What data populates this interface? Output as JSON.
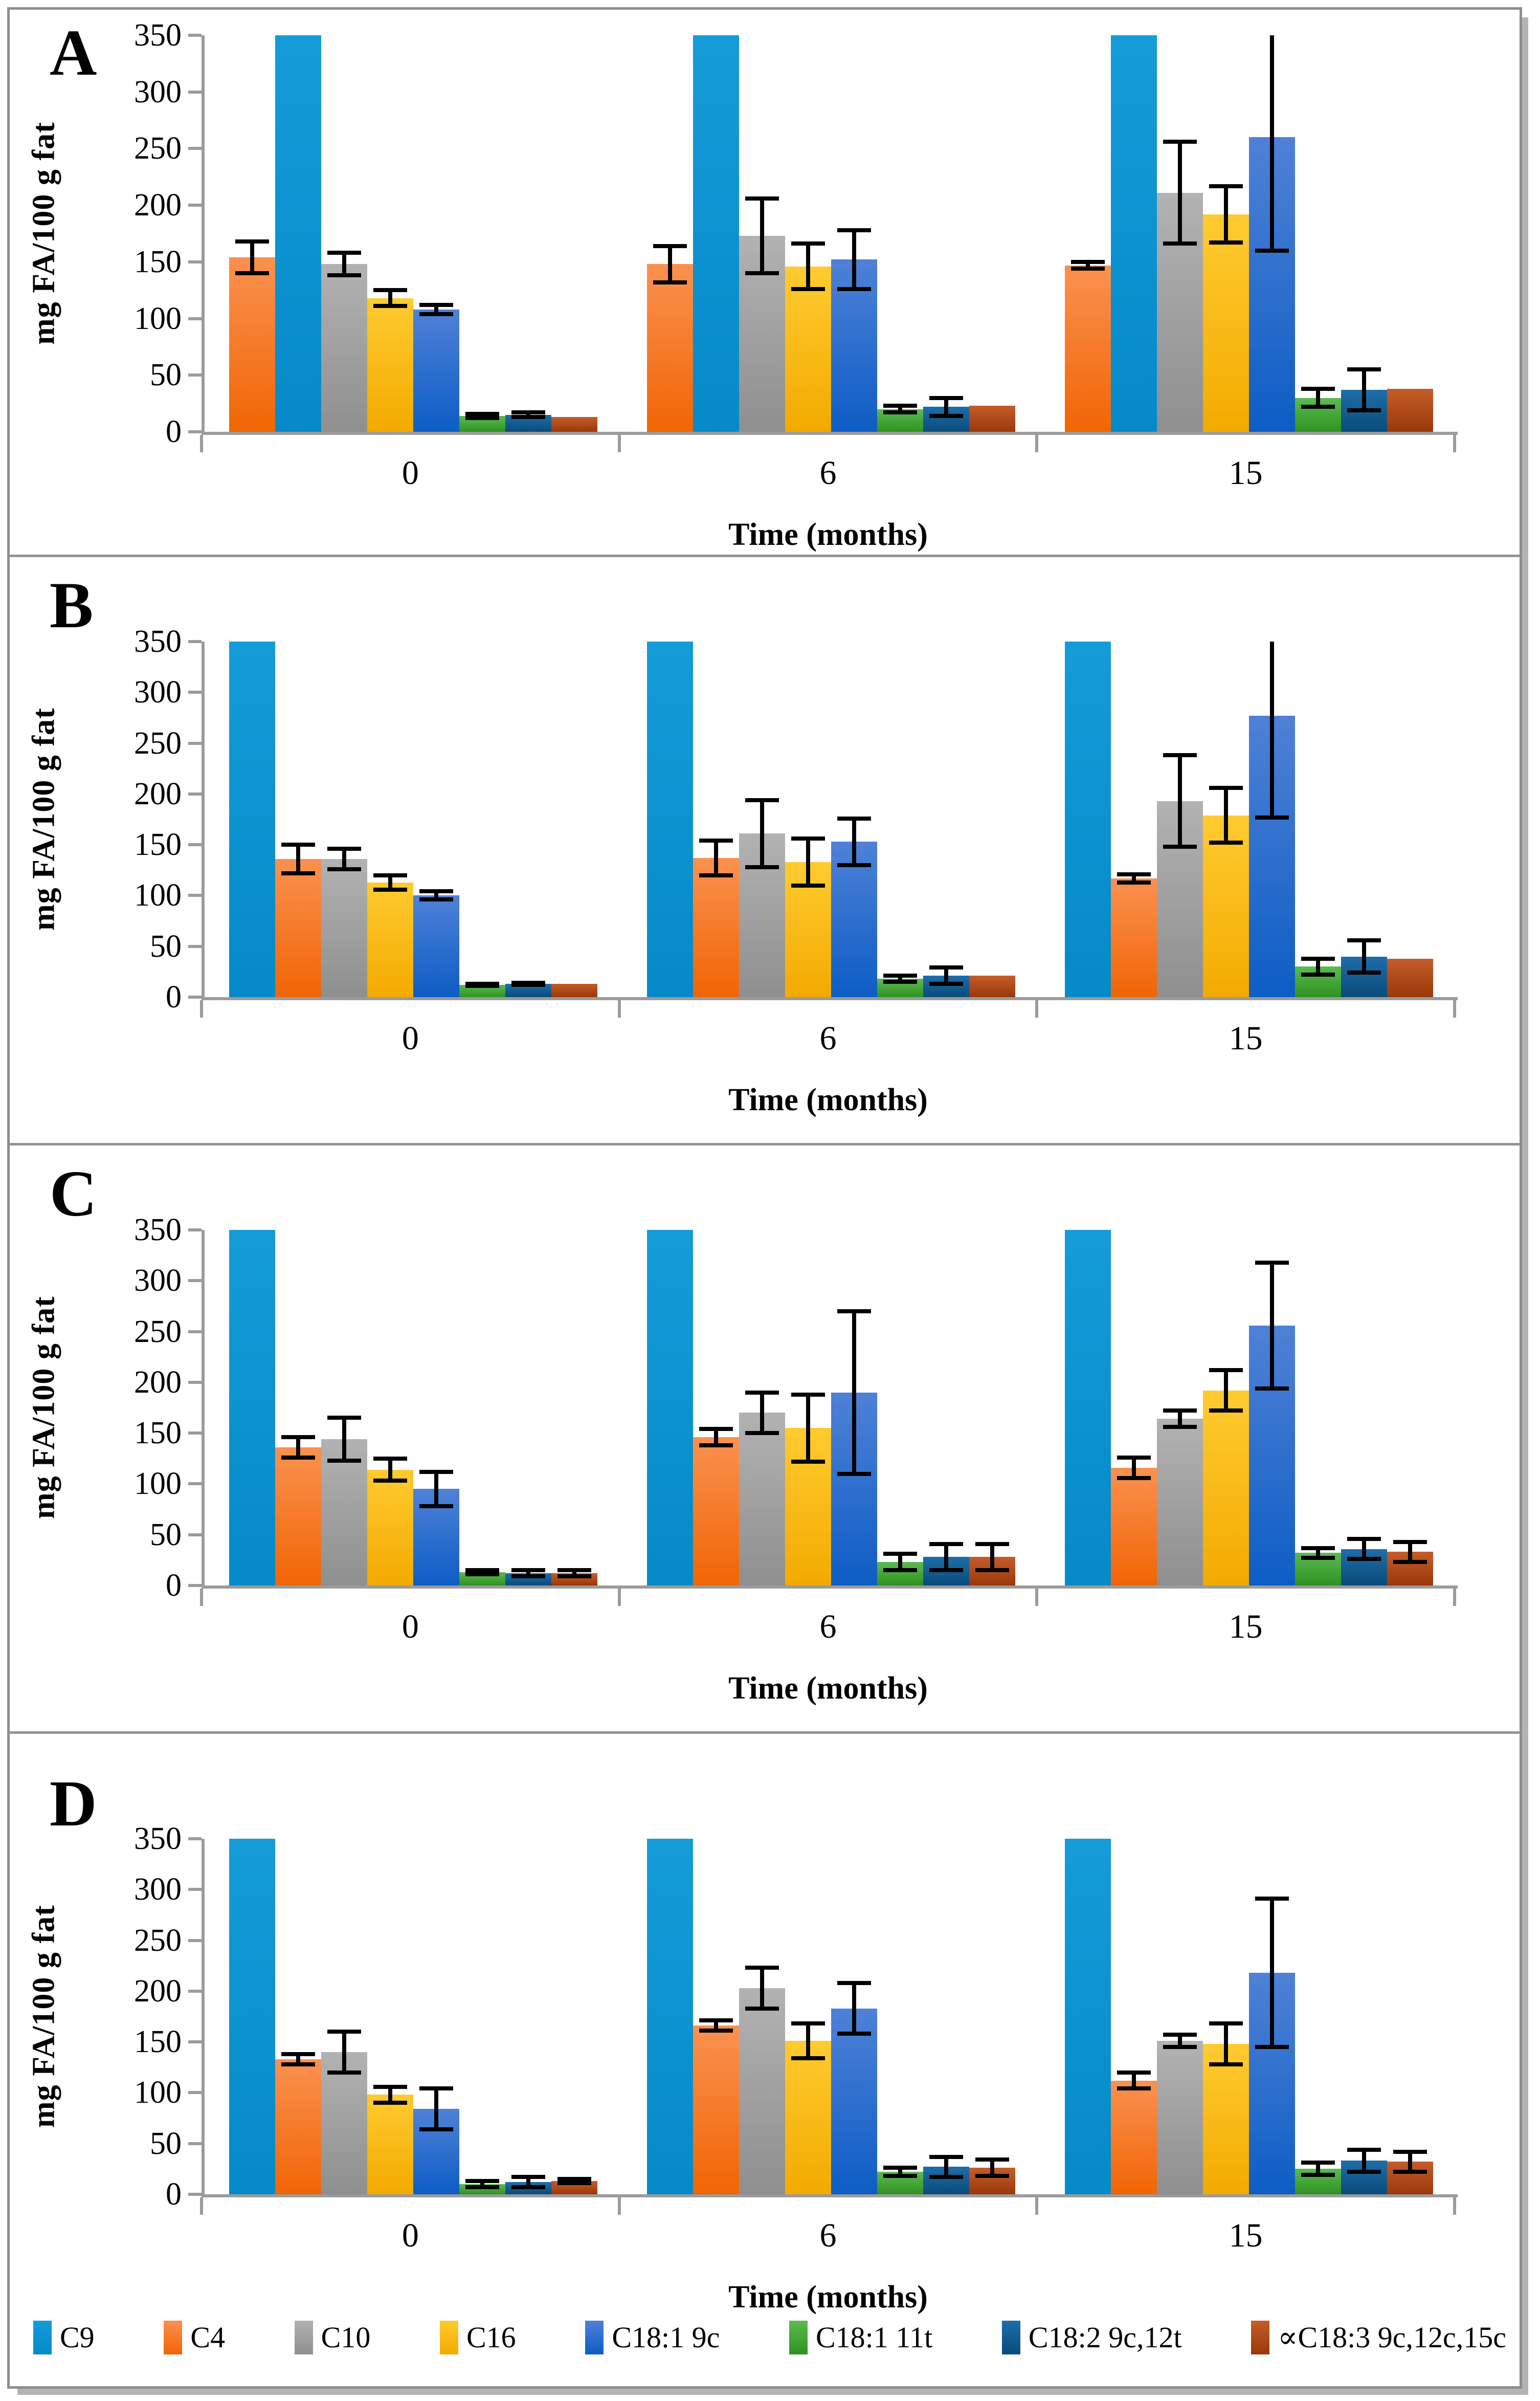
{
  "figure": {
    "y_axis_title": "mg FA/100 g fat",
    "x_axis_title": "Time (months)",
    "y_ticks": [
      "0",
      "50",
      "100",
      "150",
      "200",
      "250",
      "300",
      "350"
    ],
    "y_max": 350,
    "x_categories": [
      "0",
      "6",
      "15"
    ],
    "panel_letters": [
      "A",
      "B",
      "C",
      "D"
    ]
  },
  "legend": [
    {
      "label": "C9",
      "color": "#0E95D3"
    },
    {
      "label": "C4",
      "color": "#F2700A"
    },
    {
      "label": "C10",
      "color": "#A5A5A5"
    },
    {
      "label": "C16",
      "color": "#FFC000"
    },
    {
      "label": "C18:1 9c",
      "color": "#2E6EC8"
    },
    {
      "label": "C18:1 11t",
      "color": "#44A437"
    },
    {
      "label": "C18:2 9c,12t",
      "color": "#135C8C"
    },
    {
      "label": "∝C18:3 9c,12c,15c",
      "color": "#B2491A"
    }
  ],
  "chart_data": [
    {
      "panel": "A",
      "type": "bar",
      "ylabel": "mg FA/100 g fat",
      "xlabel": "Time (months)",
      "ylim": [
        0,
        350
      ],
      "grid": false,
      "note": "C9 bars clipped at axis maximum 350",
      "series_order": [
        "C4",
        "C9",
        "C10",
        "C16",
        "C18:1 9c",
        "C18:1 11t",
        "C18:2 9c,12t",
        "∝C18:3 9c,12c,15c"
      ],
      "groups": [
        {
          "time": "0",
          "values": [
            154,
            350,
            148,
            118,
            108,
            14,
            15,
            13
          ],
          "errors": [
            14,
            0,
            10,
            7,
            4,
            2,
            2,
            0
          ]
        },
        {
          "time": "6",
          "values": [
            148,
            350,
            173,
            146,
            152,
            20,
            22,
            23
          ],
          "errors": [
            16,
            0,
            33,
            20,
            26,
            3,
            8,
            0
          ]
        },
        {
          "time": "15",
          "values": [
            147,
            350,
            211,
            192,
            260,
            30,
            37,
            38
          ],
          "errors": [
            3,
            0,
            45,
            25,
            100,
            8,
            18,
            0
          ]
        }
      ]
    },
    {
      "panel": "B",
      "type": "bar",
      "ylabel": "mg FA/100 g fat",
      "xlabel": "Time (months)",
      "ylim": [
        0,
        350
      ],
      "grid": false,
      "note": "C9 bars clipped at axis maximum 350",
      "series_order": [
        "C9",
        "C4",
        "C10",
        "C16",
        "C18:1 9c",
        "C18:1 11t",
        "C18:2 9c,12t",
        "∝C18:3 9c,12c,15c"
      ],
      "groups": [
        {
          "time": "0",
          "values": [
            350,
            136,
            136,
            113,
            100,
            12,
            13,
            13
          ],
          "errors": [
            0,
            14,
            10,
            7,
            4,
            1,
            1,
            0
          ]
        },
        {
          "time": "6",
          "values": [
            350,
            137,
            161,
            133,
            153,
            18,
            21,
            21
          ],
          "errors": [
            0,
            17,
            33,
            23,
            23,
            3,
            8,
            0
          ]
        },
        {
          "time": "15",
          "values": [
            350,
            117,
            193,
            179,
            277,
            30,
            40,
            38
          ],
          "errors": [
            0,
            4,
            45,
            27,
            100,
            8,
            16,
            0
          ]
        }
      ]
    },
    {
      "panel": "C",
      "type": "bar",
      "ylabel": "mg FA/100 g fat",
      "xlabel": "Time (months)",
      "ylim": [
        0,
        350
      ],
      "grid": false,
      "note": "C9 bars clipped at axis maximum 350",
      "series_order": [
        "C9",
        "C4",
        "C10",
        "C16",
        "C18:1 9c",
        "C18:1 11t",
        "C18:2 9c,12t",
        "∝C18:3 9c,12c,15c"
      ],
      "groups": [
        {
          "time": "0",
          "values": [
            350,
            136,
            144,
            114,
            95,
            13,
            12,
            12
          ],
          "errors": [
            0,
            10,
            21,
            11,
            17,
            2,
            3,
            3
          ]
        },
        {
          "time": "6",
          "values": [
            350,
            146,
            170,
            155,
            190,
            23,
            28,
            28
          ],
          "errors": [
            0,
            8,
            20,
            33,
            80,
            8,
            13,
            13
          ]
        },
        {
          "time": "15",
          "values": [
            350,
            116,
            164,
            192,
            256,
            32,
            36,
            33
          ],
          "errors": [
            0,
            10,
            8,
            20,
            62,
            5,
            10,
            10
          ]
        }
      ]
    },
    {
      "panel": "D",
      "type": "bar",
      "ylabel": "mg FA/100 g fat",
      "xlabel": "Time (months)",
      "ylim": [
        0,
        350
      ],
      "grid": false,
      "note": "C9 bars clipped at axis maximum 350",
      "series_order": [
        "C9",
        "C4",
        "C10",
        "C16",
        "C18:1 9c",
        "C18:1 11t",
        "C18:2 9c,12t",
        "∝C18:3 9c,12c,15c"
      ],
      "groups": [
        {
          "time": "0",
          "values": [
            350,
            133,
            140,
            98,
            84,
            10,
            12,
            13
          ],
          "errors": [
            0,
            5,
            20,
            8,
            20,
            3,
            5,
            2
          ]
        },
        {
          "time": "6",
          "values": [
            350,
            166,
            203,
            151,
            183,
            22,
            27,
            26
          ],
          "errors": [
            0,
            5,
            20,
            17,
            25,
            4,
            10,
            8
          ]
        },
        {
          "time": "15",
          "values": [
            350,
            112,
            151,
            148,
            218,
            25,
            33,
            32
          ],
          "errors": [
            0,
            8,
            6,
            20,
            73,
            6,
            11,
            10
          ]
        }
      ]
    }
  ]
}
